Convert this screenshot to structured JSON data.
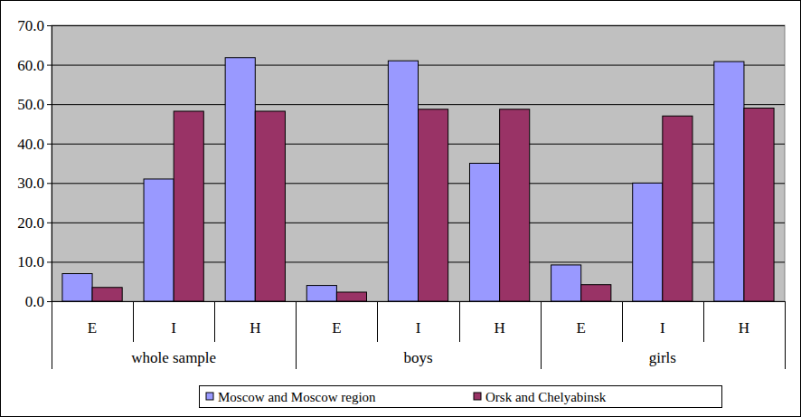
{
  "chart_data": {
    "type": "bar",
    "categories": [
      "E",
      "I",
      "H",
      "E",
      "I",
      "H",
      "E",
      "I",
      "H"
    ],
    "category_groups": [
      "whole sample",
      "boys",
      "girls"
    ],
    "series": [
      {
        "name": "Moscow and Moscow region",
        "color": "#9999ff",
        "values": [
          7.0,
          31.0,
          61.8,
          4.0,
          61.0,
          35.0,
          9.2,
          30.0,
          60.8
        ]
      },
      {
        "name": "Orsk and Chelyabinsk",
        "color": "#993366",
        "values": [
          3.5,
          48.2,
          48.2,
          2.3,
          48.7,
          48.7,
          4.2,
          47.0,
          49.0
        ]
      }
    ],
    "ylim": [
      0,
      70
    ],
    "yticks": [
      {
        "value": 0,
        "label": "0.0"
      },
      {
        "value": 10,
        "label": "10.0"
      },
      {
        "value": 20,
        "label": "20.0"
      },
      {
        "value": 30,
        "label": "30.0"
      },
      {
        "value": 40,
        "label": "40.0"
      },
      {
        "value": 50,
        "label": "50.0"
      },
      {
        "value": 60,
        "label": "60.0"
      },
      {
        "value": 70,
        "label": "70.0"
      }
    ],
    "grid": true,
    "legend": "bottom"
  }
}
